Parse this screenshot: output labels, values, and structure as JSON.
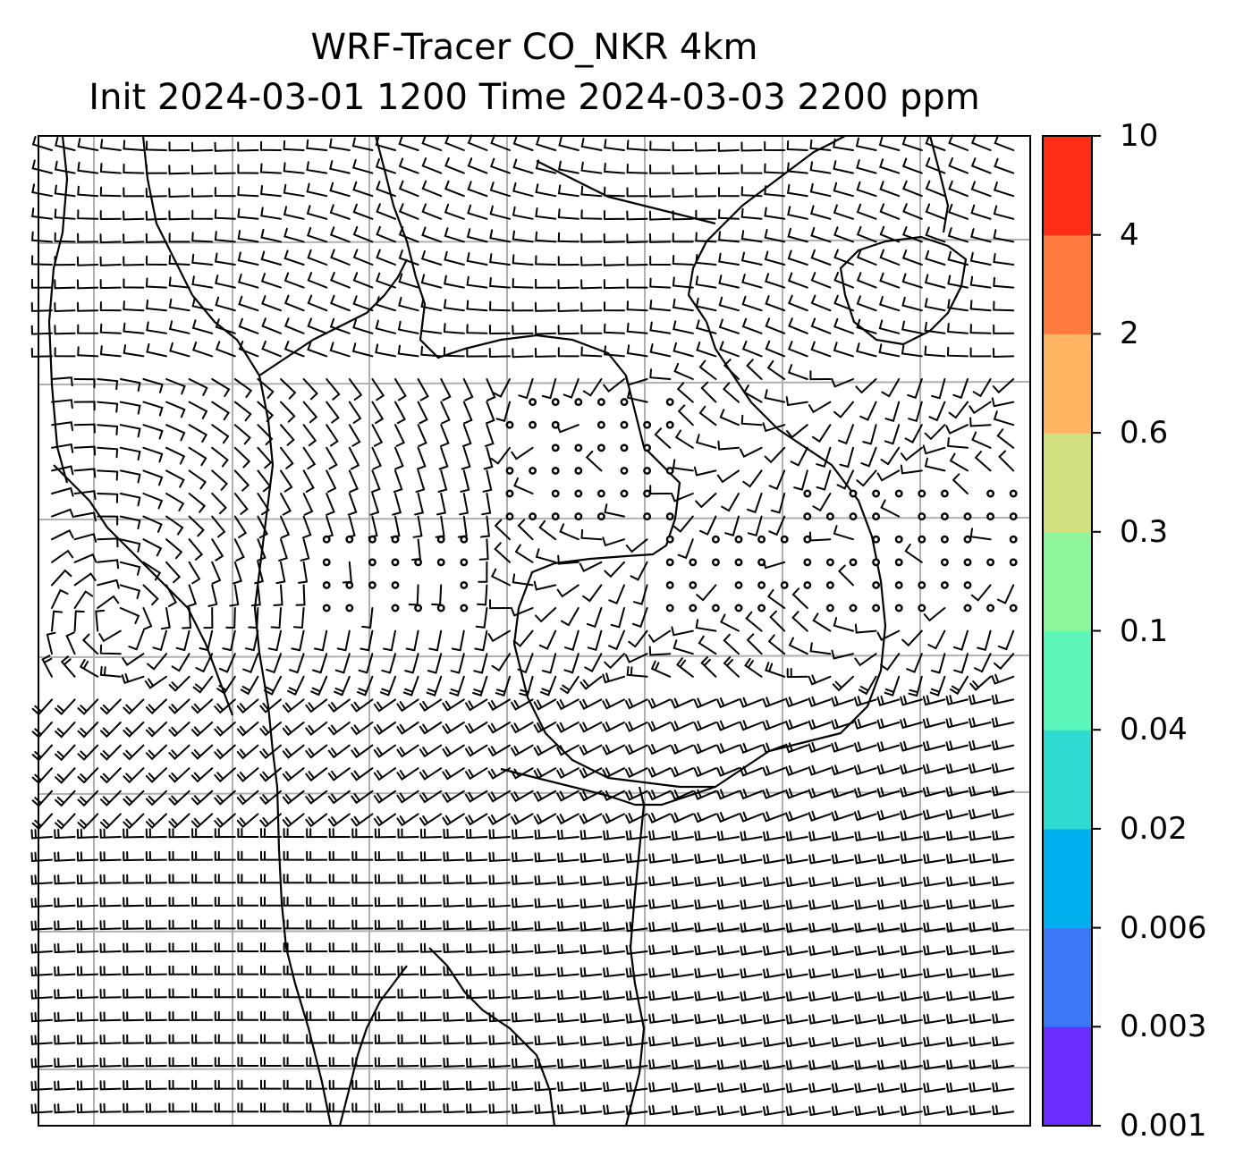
{
  "title": {
    "line1": "WRF-Tracer CO_NKR 4km",
    "line2": "Init 2024-03-01 1200 Time 2024-03-03 2200 ppm"
  },
  "colorbar": {
    "levels": [
      "0.001",
      "0.003",
      "0.006",
      "0.02",
      "0.04",
      "0.1",
      "0.3",
      "0.6",
      "2",
      "4",
      "10"
    ],
    "colors": [
      "#6a2cff",
      "#3b78f5",
      "#00b0ee",
      "#2fdcd2",
      "#5cf7b8",
      "#8ef59b",
      "#d1e17f",
      "#ffb462",
      "#ff7a3e",
      "#ff2c16"
    ]
  },
  "map": {
    "background": "#ffffff",
    "line_color": "#000000",
    "grid_color": "#b0b0b0",
    "layers": [
      "coastlines",
      "country-borders",
      "gridlines",
      "wind-barbs",
      "calm-circles"
    ]
  }
}
